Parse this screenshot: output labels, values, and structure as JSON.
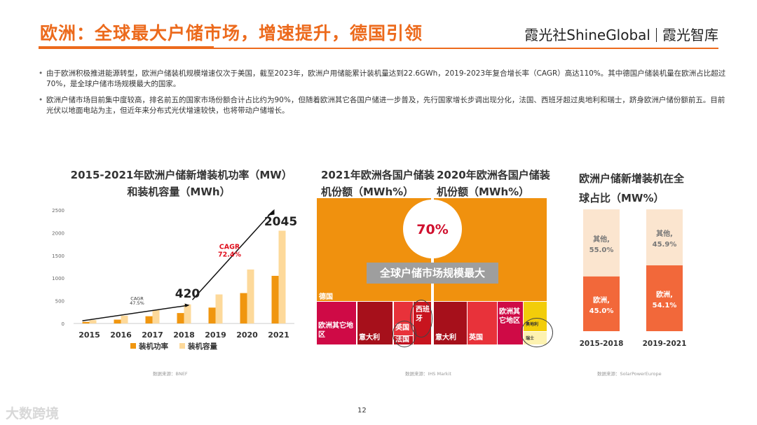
{
  "header": {
    "title": "欧洲：全球最大户储市场，增速提升，德国引领",
    "brand_left": "霞光社ShineGlobal",
    "brand_right": "霞光智库"
  },
  "bullets": [
    "由于欧洲积极推进能源转型，欧洲户储装机规模增速仅次于美国，截至2023年，欧洲户用储能累计装机量达到22.6GWh，2019-2023年复合增长率（CAGR）高达110%。其中德国户储装机量在欧洲占比超过70%，是全球户储市场规模最大的国家。",
    "欧洲户储市场目前集中度较高，排名前五的国家市场份额合计占比约为90%，但随着欧洲其它各国户储进一步普及，先行国家增长步调出现分化，法国、西班牙超过奥地利和瑞士，跻身欧洲户储份额前五。目前光伏以地面电站为主，但近年来分布式光伏增速较快，也将带动户储增长。"
  ],
  "chart_data": [
    {
      "type": "bar",
      "title": "2015-2021年欧洲户储新增装机功率（MW）和装机容量（MWh）",
      "categories": [
        "2015",
        "2016",
        "2017",
        "2018",
        "2019",
        "2020",
        "2021"
      ],
      "series": [
        {
          "name": "装机功率",
          "values": [
            35,
            85,
            160,
            230,
            350,
            670,
            1050
          ],
          "color": "#f0960f"
        },
        {
          "name": "装机容量",
          "values": [
            75,
            170,
            300,
            420,
            640,
            1190,
            2045
          ],
          "color": "#fdd99a"
        }
      ],
      "ylim": [
        0,
        2500
      ],
      "yticks": [
        0,
        500,
        1000,
        1500,
        2000,
        2500
      ],
      "annotations": {
        "val_2018": "420",
        "val_2021": "2045",
        "cagr1_label": "CAGR",
        "cagr1_value": "47.5%",
        "cagr2_label": "CAGR",
        "cagr2_value": "72.4%"
      },
      "source": "数据来源：BNEF"
    },
    {
      "type": "treemap",
      "title_left": "2021年欧洲各国户储装机份额（MWh%）",
      "title_right": "2020年欧洲各国户储装机份额（MWh%）",
      "highlight_value": "70%",
      "banner": "全球户储市场规模最大",
      "left_cells": [
        "德国",
        "欧洲其它地区",
        "意大利",
        "英国",
        "法国",
        "西班牙"
      ],
      "right_cells": [
        "意大利",
        "英国",
        "欧洲其它地区",
        "奥地利",
        "瑞士"
      ],
      "source": "数据来源：IHS Markit"
    },
    {
      "type": "bar",
      "stacked": true,
      "title": "欧洲户储新增装机在全球占比（MW%）",
      "categories": [
        "2015-2018",
        "2019-2021"
      ],
      "series": [
        {
          "name": "欧洲",
          "values": [
            45.0,
            54.1
          ],
          "labels": [
            "欧洲,\n45.0%",
            "欧洲,\n54.1%"
          ],
          "color": "#f2683a"
        },
        {
          "name": "其他",
          "values": [
            55.0,
            45.9
          ],
          "labels": [
            "其他,\n55.0%",
            "其他,\n45.9%"
          ],
          "color": "#fbe5cf"
        }
      ],
      "ylim": [
        0,
        100
      ],
      "source": "数据来源：SolarPowerEurope"
    }
  ],
  "footer": {
    "page_number": "12",
    "watermark": "大数跨境"
  }
}
